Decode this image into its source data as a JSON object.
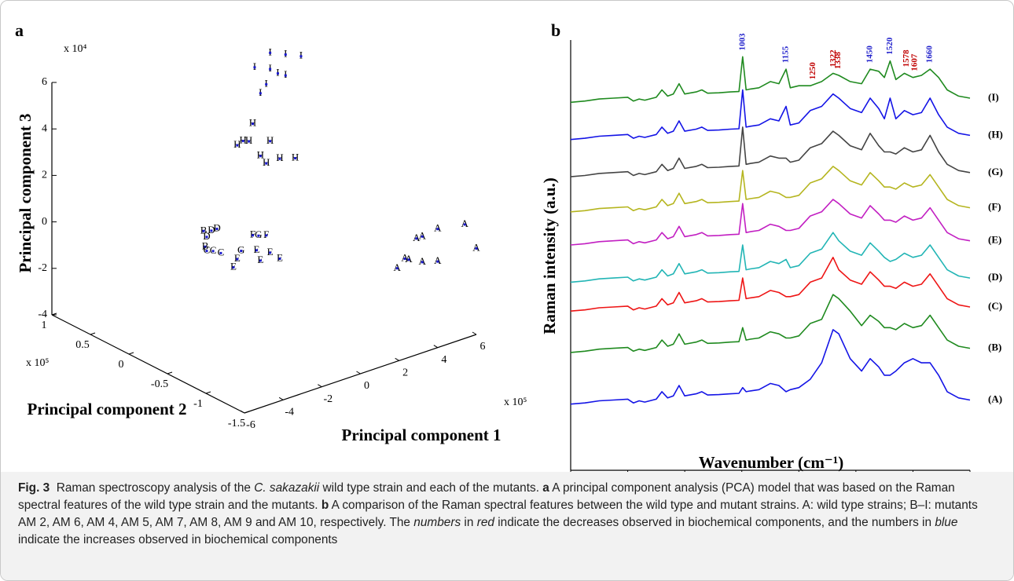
{
  "chart_data": [
    {
      "type": "scatter3d",
      "panel": "a",
      "xlabel": "Principal component 1",
      "ylabel": "Principal component 2",
      "zlabel": "Principal component 3",
      "x_multiplier": "x 10⁵",
      "y_multiplier": "x 10⁵",
      "z_multiplier": "x 10⁴",
      "xlim": [
        -6,
        6
      ],
      "ylim": [
        -1.5,
        1
      ],
      "zlim": [
        -4,
        6
      ],
      "xticks": [
        -6,
        -4,
        -2,
        0,
        2,
        4,
        6
      ],
      "yticks": [
        -1.5,
        -1,
        -0.5,
        0,
        0.5,
        1
      ],
      "zticks": [
        -4,
        -2,
        0,
        2,
        4,
        6
      ],
      "color": "#1a1acc",
      "point_labels": [
        "A",
        "A",
        "A",
        "A",
        "A",
        "A",
        "A",
        "A",
        "A",
        "A",
        "I",
        "I",
        "I",
        "I",
        "I",
        "I",
        "I",
        "I",
        "I",
        "H",
        "H",
        "H",
        "H",
        "H",
        "H",
        "H",
        "H",
        "H",
        "D",
        "D",
        "D",
        "B",
        "B",
        "C",
        "C",
        "C",
        "E",
        "E",
        "E",
        "E",
        "E",
        "E",
        "F",
        "F",
        "G",
        "G"
      ],
      "x": [
        5.4,
        4.0,
        3.2,
        2.9,
        6.0,
        2.5,
        2.3,
        3.2,
        4.0,
        1.9,
        3.3,
        4.1,
        4.9,
        2.5,
        3.3,
        3.7,
        4.1,
        3.1,
        2.8,
        2.4,
        1.6,
        1.9,
        2.2,
        3.3,
        2.8,
        3.1,
        3.8,
        4.6,
        0.55,
        0.26,
        0.02,
        -0.14,
        -0.06,
        0.35,
        0.02,
        0.75,
        2.6,
        3.3,
        2.8,
        3.8,
        1.4,
        1.6,
        3.1,
        2.4,
        2.7,
        1.8
      ],
      "y": [
        -1.5,
        -1.5,
        -1.5,
        -1.5,
        -1.5,
        -1.5,
        -1.5,
        -1.5,
        -1.5,
        -1.5,
        0.5,
        0.5,
        0.5,
        0.5,
        0.5,
        0.5,
        0.5,
        0.5,
        0.5,
        0.5,
        0.5,
        0.5,
        0.5,
        0.5,
        0.5,
        0.5,
        0.5,
        0.5,
        0.5,
        0.5,
        0.5,
        0.5,
        0.5,
        0.5,
        0.5,
        0.5,
        0.5,
        0.5,
        0.5,
        0.5,
        0.5,
        0.5,
        0.5,
        0.5,
        0.5,
        0.5
      ],
      "z": [
        0.9,
        1.1,
        1.0,
        1.0,
        -0.3,
        0.2,
        0.3,
        -0.1,
        -0.3,
        0.0,
        5.5,
        5.2,
        4.9,
        5.1,
        4.8,
        4.5,
        4.3,
        4.2,
        3.9,
        2.7,
        2.0,
        2.1,
        2.0,
        1.7,
        1.2,
        0.8,
        0.8,
        0.6,
        -1.3,
        -1.3,
        -1.5,
        -1.2,
        -1.9,
        -2.2,
        -2.1,
        -2.4,
        -2.8,
        -3.1,
        -3.3,
        -3.5,
        -3.2,
        -2.9,
        -2.3,
        -2.1,
        -2.2,
        -2.6
      ]
    },
    {
      "type": "line",
      "panel": "b",
      "xlabel": "Wavenumber (cm⁻¹)",
      "ylabel": "Raman intensity (a.u.)",
      "xlim": [
        400,
        1800
      ],
      "xticks": [
        400,
        600,
        800,
        1000,
        1200,
        1400,
        1600,
        1800
      ],
      "ylim": [
        0,
        105
      ],
      "x": [
        400,
        450,
        500,
        550,
        600,
        620,
        640,
        660,
        700,
        720,
        740,
        760,
        780,
        800,
        840,
        860,
        880,
        920,
        960,
        990,
        1003,
        1015,
        1030,
        1060,
        1100,
        1130,
        1155,
        1170,
        1200,
        1240,
        1280,
        1320,
        1340,
        1380,
        1420,
        1450,
        1480,
        1500,
        1520,
        1540,
        1570,
        1600,
        1630,
        1660,
        1690,
        1720,
        1760,
        1800
      ],
      "series": [
        {
          "name": "(A)",
          "color": "#1414e6",
          "values": [
            16,
            16.3,
            16.8,
            17,
            17.2,
            16.3,
            16.8,
            16.5,
            17.2,
            19,
            17.5,
            18,
            20.5,
            18,
            18.5,
            19,
            18.2,
            18.3,
            18.5,
            18.6,
            20,
            19,
            19.2,
            19.5,
            21,
            20.5,
            19,
            19.5,
            20,
            22,
            26,
            34,
            33,
            27,
            24,
            27,
            25,
            23,
            23,
            24,
            26,
            27,
            26,
            26,
            23,
            19,
            17.5,
            17
          ]
        },
        {
          "name": "(B)",
          "color": "#1f8a1f",
          "values": [
            28.5,
            28.8,
            29.3,
            29.5,
            29.7,
            28.8,
            29.3,
            29,
            29.7,
            31.5,
            30,
            30.5,
            33,
            30.5,
            31,
            31.5,
            30.7,
            30.8,
            31,
            31.1,
            34.5,
            31.5,
            31.7,
            32,
            33.5,
            33,
            32,
            32,
            32.5,
            35.5,
            36.5,
            42.5,
            41.5,
            38.5,
            35,
            37.5,
            36,
            34.5,
            34.5,
            34,
            35.5,
            34.5,
            35,
            37.5,
            34.5,
            31.5,
            30,
            29.5
          ]
        },
        {
          "name": "(C)",
          "color": "#ee1515",
          "values": [
            38.5,
            38.8,
            39.3,
            39.5,
            39.7,
            38.8,
            39.3,
            39,
            39.7,
            41.5,
            40,
            40.5,
            43,
            40.5,
            41,
            41.5,
            40.7,
            40.8,
            41,
            41.1,
            46.5,
            41.5,
            41.7,
            42,
            43.5,
            43,
            42,
            42,
            42.5,
            45.5,
            46.5,
            51.5,
            48.5,
            46,
            45,
            48,
            46,
            44.5,
            44.5,
            44,
            45.5,
            44.5,
            45,
            47.5,
            44.5,
            41.5,
            40,
            39.5
          ]
        },
        {
          "name": "(D)",
          "color": "#22b5b5",
          "values": [
            45.5,
            45.8,
            46.3,
            46.5,
            46.7,
            45.8,
            46.3,
            46,
            46.7,
            48.5,
            47,
            47.5,
            50,
            47.5,
            48,
            48.5,
            47.7,
            47.8,
            48,
            48.1,
            54.5,
            48.5,
            48.7,
            49,
            50.5,
            50,
            51,
            49,
            49.5,
            52.5,
            53.5,
            57.5,
            55.5,
            53,
            52,
            55,
            53,
            51.5,
            50.5,
            51,
            52.5,
            51.5,
            52,
            54.5,
            51.5,
            48.5,
            47,
            46.5
          ]
        },
        {
          "name": "(E)",
          "color": "#c21fc2",
          "values": [
            54.5,
            54.8,
            55.3,
            55.5,
            55.7,
            54.8,
            55.3,
            55,
            55.7,
            57.5,
            56,
            56.5,
            59,
            56.5,
            57,
            57.5,
            56.7,
            56.8,
            57,
            57.1,
            64.5,
            57.5,
            57.7,
            58,
            59.5,
            59,
            58,
            58,
            58.5,
            61.5,
            62.5,
            65.5,
            64.5,
            62,
            61,
            64,
            62,
            60.5,
            60.5,
            60,
            61.5,
            60.5,
            61,
            63.5,
            60.5,
            57.5,
            56,
            55.5
          ]
        },
        {
          "name": "(F)",
          "color": "#b5b51f",
          "values": [
            62.5,
            62.8,
            63.3,
            63.5,
            63.7,
            62.8,
            63.3,
            63,
            63.7,
            65.5,
            64,
            64.5,
            67,
            64.5,
            65,
            65.5,
            64.7,
            64.8,
            65,
            65.1,
            72.5,
            65.5,
            65.7,
            66,
            67.5,
            67,
            66,
            66,
            66.5,
            69.5,
            70.5,
            73.5,
            72.5,
            70,
            69,
            72,
            70,
            68.5,
            68.5,
            68,
            69.5,
            68.5,
            69,
            71.5,
            68.5,
            65.5,
            64,
            63.5
          ]
        },
        {
          "name": "(G)",
          "color": "#444444",
          "values": [
            71,
            71.3,
            71.8,
            72,
            72.2,
            71.3,
            71.8,
            71.5,
            72.2,
            74,
            72.5,
            73,
            75.5,
            73,
            73.5,
            74,
            73.2,
            73.3,
            73.5,
            73.6,
            83,
            74,
            74.2,
            74.5,
            76,
            75.5,
            75.5,
            74.5,
            75,
            78,
            79,
            82,
            81,
            78.5,
            77.5,
            81.5,
            78.5,
            77,
            77,
            76.5,
            78,
            77,
            77.5,
            81,
            77,
            74,
            72.5,
            72
          ]
        },
        {
          "name": "(H)",
          "color": "#1414e6",
          "values": [
            80,
            80.3,
            80.8,
            81,
            81.2,
            80.3,
            80.8,
            80.5,
            81.2,
            83,
            81.5,
            82,
            84.5,
            82,
            82.5,
            83,
            82.2,
            82.3,
            82.5,
            82.6,
            92,
            83,
            83.2,
            83.5,
            85,
            84.5,
            88,
            83.5,
            84,
            87,
            88,
            91,
            90,
            87.5,
            86.5,
            90,
            87.5,
            85,
            90,
            85,
            87,
            86,
            86.5,
            90,
            86,
            83,
            81.5,
            81
          ]
        },
        {
          "name": "(I)",
          "color": "#1f8a1f",
          "values": [
            89,
            89.3,
            89.8,
            90,
            90.2,
            89.3,
            89.8,
            89.5,
            90.2,
            92,
            90.5,
            91,
            93.5,
            91,
            91.5,
            92,
            91.2,
            91.3,
            91.5,
            91.6,
            100,
            92,
            92.2,
            92.5,
            94,
            93.5,
            97,
            92.5,
            93,
            93,
            94,
            96,
            95.5,
            94,
            93.5,
            97,
            96.5,
            95,
            99,
            94.5,
            96,
            95,
            95.5,
            97,
            95,
            92,
            90.5,
            90
          ]
        }
      ],
      "annotations": [
        {
          "x": 1003,
          "color": "#2222cc"
        },
        {
          "x": 1155,
          "color": "#2222cc"
        },
        {
          "x": 1250,
          "color": "#c00000"
        },
        {
          "x": 1322,
          "color": "#c00000"
        },
        {
          "x": 1338,
          "color": "#c00000"
        },
        {
          "x": 1450,
          "color": "#2222cc"
        },
        {
          "x": 1520,
          "color": "#2222cc"
        },
        {
          "x": 1578,
          "color": "#c00000"
        },
        {
          "x": 1607,
          "color": "#c00000"
        },
        {
          "x": 1660,
          "color": "#2222cc"
        }
      ]
    }
  ],
  "caption": [
    {
      "text": "Fig. 3",
      "style": "bold"
    },
    {
      "text": "  Raman spectroscopy analysis of the "
    },
    {
      "text": "C. sakazakii",
      "style": "italic"
    },
    {
      "text": " wild type strain and each of the mutants. "
    },
    {
      "text": "a",
      "style": "bold"
    },
    {
      "text": " A principal component analysis (PCA) model that was based on the Raman spectral features of the wild type strain and the mutants. "
    },
    {
      "text": "b",
      "style": "bold"
    },
    {
      "text": " A comparison of the Raman spectral features between the wild type and mutant strains. A: wild type strains; B–I: mutants AM 2, AM 6, AM 4, AM 5, AM 7, AM 8, AM 9 and AM 10, respectively. The "
    },
    {
      "text": "numbers",
      "style": "italic"
    },
    {
      "text": " in "
    },
    {
      "text": "red",
      "style": "italic"
    },
    {
      "text": " indicate the decreases observed in biochemical components, and the numbers in "
    },
    {
      "text": "blue",
      "style": "italic"
    },
    {
      "text": " indicate the increases observed in biochemical components"
    }
  ]
}
